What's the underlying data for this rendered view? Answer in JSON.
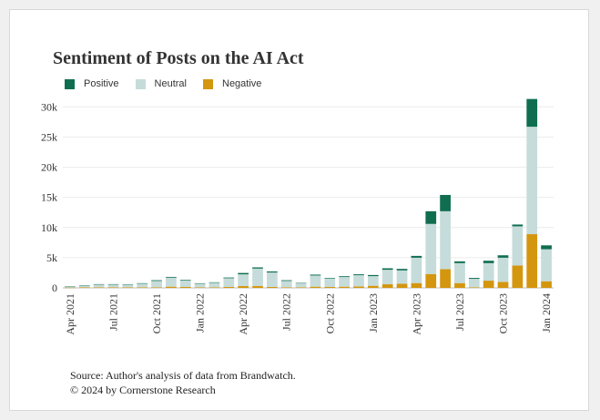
{
  "chart_data": {
    "type": "bar",
    "stacked": true,
    "title": "Sentiment of Posts on the AI Act",
    "xlabel": "",
    "ylabel": "",
    "ylim": [
      0,
      32000
    ],
    "yticks": [
      0,
      5000,
      10000,
      15000,
      20000,
      25000,
      30000
    ],
    "ytick_labels": [
      "0",
      "5k",
      "10k",
      "15k",
      "20k",
      "25k",
      "30k"
    ],
    "grid": "horizontal",
    "legend_position": "top-left",
    "categories": [
      "Apr 2021",
      "May 2021",
      "Jun 2021",
      "Jul 2021",
      "Aug 2021",
      "Sep 2021",
      "Oct 2021",
      "Nov 2021",
      "Dec 2021",
      "Jan 2022",
      "Feb 2022",
      "Mar 2022",
      "Apr 2022",
      "May 2022",
      "Jun 2022",
      "Jul 2022",
      "Aug 2022",
      "Sep 2022",
      "Oct 2022",
      "Nov 2022",
      "Dec 2022",
      "Jan 2023",
      "Feb 2023",
      "Mar 2023",
      "Apr 2023",
      "May 2023",
      "Jun 2023",
      "Jul 2023",
      "Aug 2023",
      "Sep 2023",
      "Oct 2023",
      "Nov 2023",
      "Dec 2023",
      "Jan 2024"
    ],
    "xtick_labels": [
      {
        "index": 0,
        "label": "Apr 2021"
      },
      {
        "index": 3,
        "label": "Jul 2021"
      },
      {
        "index": 6,
        "label": "Oct 2021"
      },
      {
        "index": 9,
        "label": "Jan 2022"
      },
      {
        "index": 12,
        "label": "Apr 2022"
      },
      {
        "index": 15,
        "label": "Jul 2022"
      },
      {
        "index": 18,
        "label": "Oct 2022"
      },
      {
        "index": 21,
        "label": "Jan 2023"
      },
      {
        "index": 24,
        "label": "Apr 2023"
      },
      {
        "index": 27,
        "label": "Jul 2023"
      },
      {
        "index": 30,
        "label": "Oct 2023"
      },
      {
        "index": 33,
        "label": "Jan 2024"
      }
    ],
    "series": [
      {
        "name": "Negative",
        "color": "#d4960f",
        "values": [
          50,
          100,
          100,
          100,
          100,
          100,
          100,
          200,
          150,
          100,
          100,
          150,
          300,
          300,
          150,
          100,
          100,
          200,
          150,
          200,
          250,
          350,
          600,
          700,
          800,
          2300,
          3100,
          800,
          100,
          1200,
          1000,
          3700,
          8900,
          1100
        ]
      },
      {
        "name": "Neutral",
        "color": "#c5dcda",
        "values": [
          150,
          250,
          450,
          450,
          400,
          600,
          1050,
          1500,
          1100,
          600,
          750,
          1450,
          1950,
          2900,
          2400,
          1050,
          650,
          1850,
          1400,
          1600,
          1850,
          1600,
          2400,
          2200,
          4200,
          8300,
          9600,
          3300,
          1400,
          2900,
          4000,
          6500,
          17800,
          5300
        ]
      },
      {
        "name": "Positive",
        "color": "#0f6e50",
        "values": [
          20,
          50,
          70,
          70,
          70,
          80,
          120,
          120,
          100,
          70,
          80,
          120,
          220,
          200,
          180,
          120,
          70,
          150,
          100,
          130,
          150,
          180,
          250,
          250,
          300,
          2100,
          2700,
          300,
          150,
          400,
          400,
          300,
          4600,
          650
        ]
      }
    ]
  },
  "legend": [
    {
      "name": "Positive",
      "color": "#0f6e50"
    },
    {
      "name": "Neutral",
      "color": "#c5dcda"
    },
    {
      "name": "Negative",
      "color": "#d4960f"
    }
  ],
  "source_note": {
    "line1": "Source: Author's analysis of data from Brandwatch.",
    "line2": "© 2024 by Cornerstone Research"
  }
}
